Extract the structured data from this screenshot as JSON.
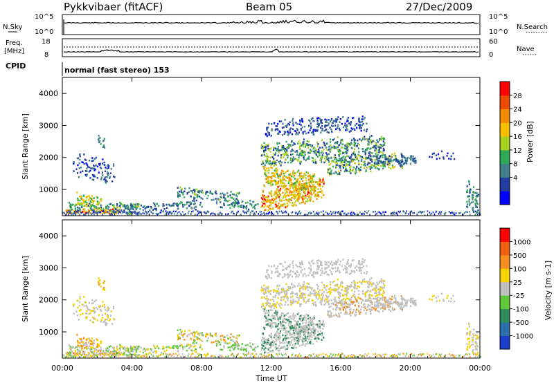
{
  "header": {
    "title": "Pykkvibaer (fitACF)",
    "beam": "Beam 05",
    "date": "27/Dec/2009"
  },
  "noise_panel": {
    "left_label": "N.Sky",
    "right_label": "N.Search",
    "left_ticks": [
      "10^5",
      "10^0"
    ],
    "right_ticks": [
      "10^5",
      "10^0"
    ]
  },
  "freq_panel": {
    "left_label_1": "Freq.",
    "left_label_2": "[MHz]",
    "right_label": "Nave",
    "left_ticks": [
      "18",
      "8"
    ],
    "right_ticks": [
      "60",
      "0"
    ]
  },
  "cpid": {
    "label": "CPID",
    "text": "normal (fast stereo) 153"
  },
  "chart_data": [
    {
      "type": "heatmap",
      "name": "Power",
      "ylabel": "Slant Range [km]",
      "ylim": [
        180,
        4500
      ],
      "y_ticks": [
        "1000",
        "2000",
        "3000",
        "4000"
      ],
      "colorbar_label": "Power [dB]",
      "colorbar_ticks": [
        "28",
        "24",
        "20",
        "16",
        "12",
        "8",
        "4"
      ],
      "colorbar_colors": [
        "#0000ff",
        "#1f3ea0",
        "#3f7f8a",
        "#2eaa55",
        "#a8d020",
        "#f7c000",
        "#f28c00",
        "#ec4a00",
        "#ff0000"
      ],
      "xlim": [
        0,
        24
      ]
    },
    {
      "type": "heatmap",
      "name": "Velocity",
      "ylabel": "Slant Range [km]",
      "ylim": [
        180,
        4500
      ],
      "y_ticks": [
        "1000",
        "2000",
        "3000",
        "4000"
      ],
      "colorbar_label": "Velocity [m s-1]",
      "colorbar_ticks": [
        "1000",
        "500",
        "100",
        "25",
        "-25",
        "-100",
        "-500",
        "-1000"
      ],
      "colorbar_colors": [
        "#1a3cc8",
        "#2a6fa8",
        "#2e8a5a",
        "#5fc83a",
        "#c0c0c0",
        "#f5d200",
        "#f59020",
        "#f06010",
        "#ff0000"
      ],
      "xlim": [
        0,
        24
      ]
    }
  ],
  "x_axis": {
    "label": "Time UT",
    "ticks": [
      "00:00",
      "04:00",
      "08:00",
      "12:00",
      "16:00",
      "20:00",
      "00:00"
    ]
  }
}
